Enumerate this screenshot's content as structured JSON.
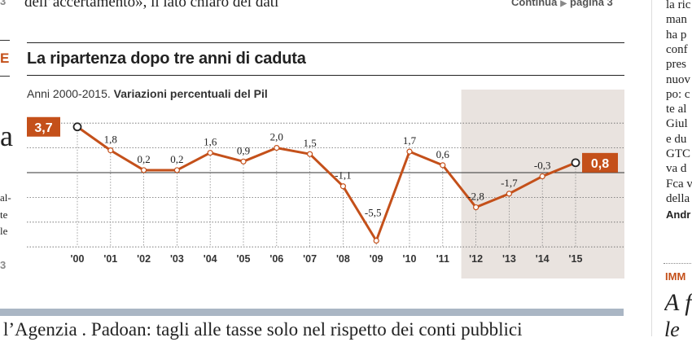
{
  "top": {
    "headline_fragment": "dell’accertamento», il lato chiaro dei dati",
    "continua_label": "Continua",
    "continua_page": "pagina 3",
    "left_fragment": "3"
  },
  "chart": {
    "title": "La ripartenza dopo tre anni di caduta",
    "subtitle_plain": "Anni 2000-2015.",
    "subtitle_bold": "Variazioni percentuali del Pil",
    "highlight_first": "3,7",
    "highlight_last": "0,8",
    "accent_color": "#c4501a",
    "shade_color": "#e9e3df"
  },
  "chart_data": {
    "type": "line",
    "title": "La ripartenza dopo tre anni di caduta",
    "subtitle": "Anni 2000-2015. Variazioni percentuali del Pil",
    "categories": [
      "'00",
      "'01",
      "'02",
      "'03",
      "'04",
      "'05",
      "'06",
      "'07",
      "'08",
      "'09",
      "'10",
      "'11",
      "'12",
      "'13",
      "'14",
      "'15"
    ],
    "values": [
      3.7,
      1.8,
      0.2,
      0.2,
      1.6,
      0.9,
      2.0,
      1.5,
      -1.1,
      -5.5,
      1.7,
      0.6,
      -2.8,
      -1.7,
      -0.3,
      0.8
    ],
    "labels": [
      "3,7",
      "1,8",
      "0,2",
      "0,2",
      "1,6",
      "0,9",
      "2,0",
      "1,5",
      "-1,1",
      "-5,5",
      "1,7",
      "0,6",
      "-2,8",
      "-1,7",
      "-0,3",
      "0,8"
    ],
    "ylim": [
      -5.5,
      4.5
    ],
    "gridlines": [
      4,
      2,
      0,
      -2,
      -4,
      -6
    ],
    "shaded_range": [
      "'12",
      "'15"
    ],
    "grid": true,
    "legend": "none"
  },
  "left_margin": {
    "frag_e": "E",
    "frag_a": "a",
    "frag_l1": "al-",
    "frag_l2": "te",
    "frag_l3": "le",
    "frag_3": "3"
  },
  "right_column": {
    "lines": [
      "la ric",
      "man",
      "ha p",
      "conf",
      "pres",
      "nuov",
      "po: c",
      "te al",
      "Giul",
      "e du",
      "GTC",
      "va d",
      "Fca v",
      "della",
      "Andr"
    ],
    "section_label": "IMM",
    "big1": "A fo",
    "big2": "le"
  },
  "bottom": {
    "text": "l’Agenzia . Padoan: tagli alle tasse solo nel rispetto dei conti pubblici"
  }
}
